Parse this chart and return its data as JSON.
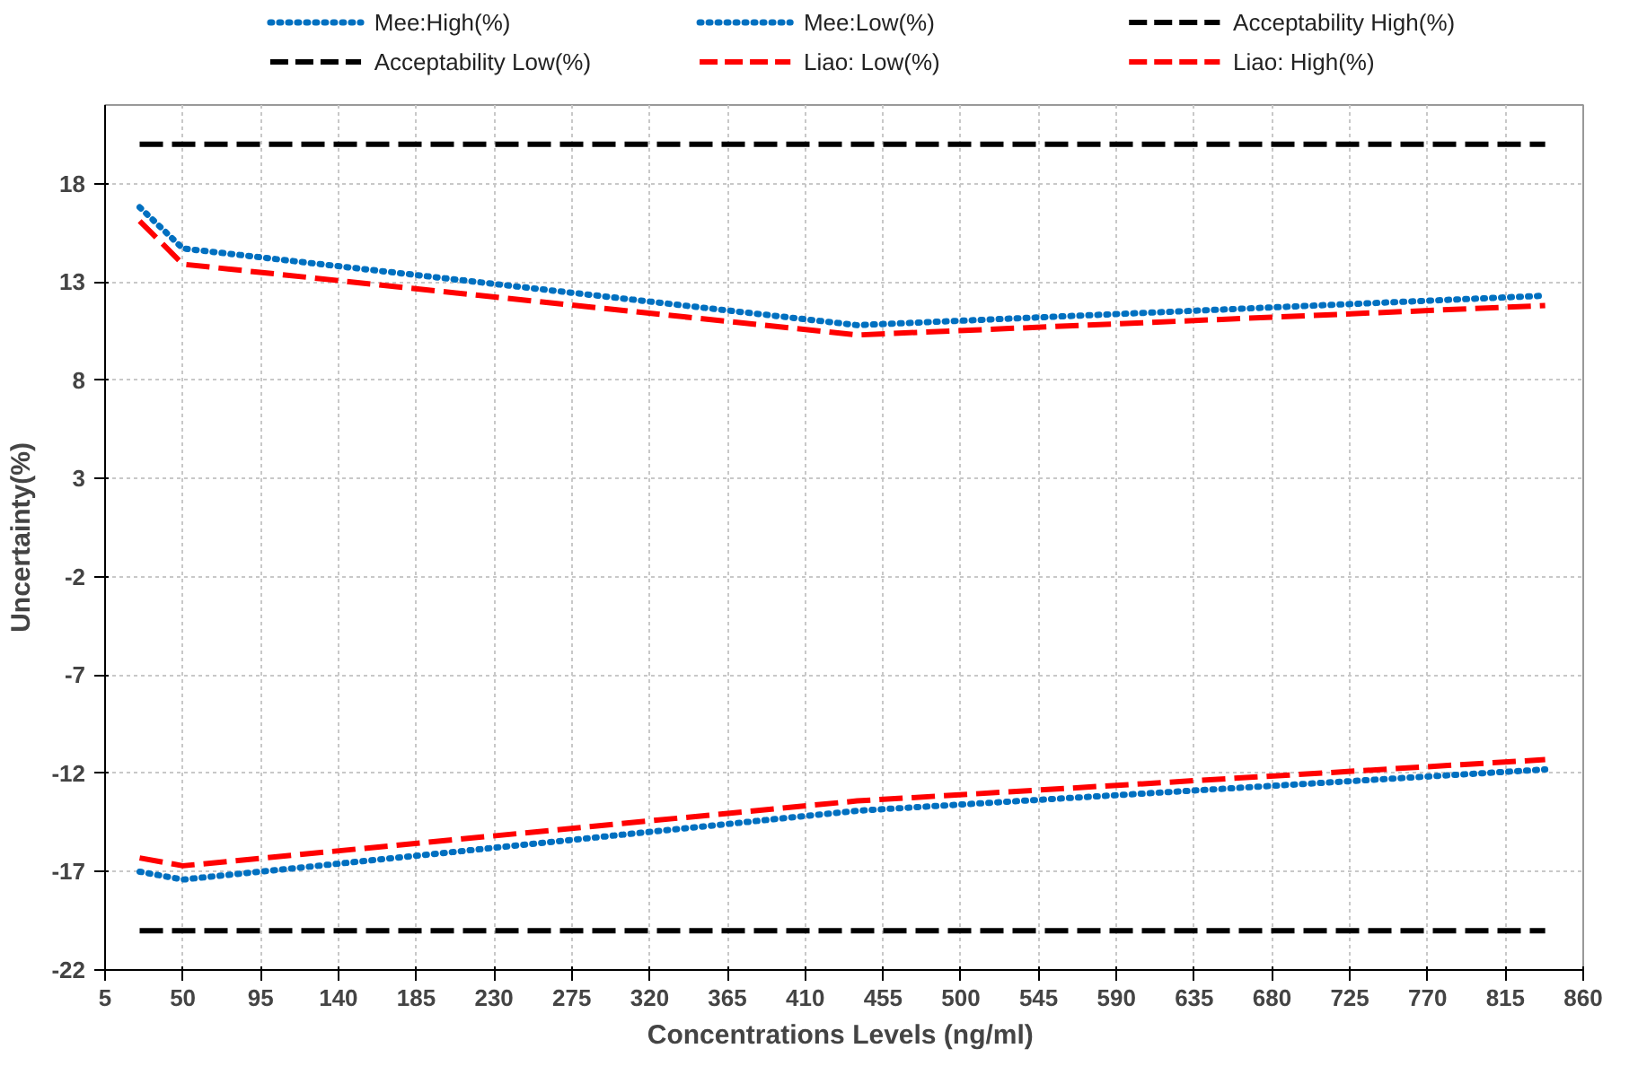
{
  "chart_data": {
    "type": "line",
    "xlabel": "Concentrations Levels  (ng/ml)",
    "ylabel": "Uncertainty(%)",
    "xlim": [
      5,
      860
    ],
    "xticks": [
      5,
      50,
      95,
      140,
      185,
      230,
      275,
      320,
      365,
      410,
      455,
      500,
      545,
      590,
      635,
      680,
      725,
      770,
      815,
      860
    ],
    "ylim": [
      -22,
      22
    ],
    "yticks": [
      -22,
      -17,
      -12,
      -7,
      -2,
      3,
      8,
      13,
      18
    ],
    "grid": true,
    "legend": "top",
    "marker": "none",
    "series": [
      {
        "name": "Mee:High(%)",
        "color": "#0070c0",
        "line_style": "dotted",
        "x": [
          25,
          50,
          440,
          838
        ],
        "values": [
          16.8,
          14.7,
          10.8,
          12.3
        ]
      },
      {
        "name": "Mee:Low(%)",
        "color": "#0070c0",
        "line_style": "dotted",
        "x": [
          25,
          50,
          440,
          838
        ],
        "values": [
          -17,
          -17.4,
          -13.9,
          -11.8
        ]
      },
      {
        "name": "Acceptability High(%)",
        "color": "#000000",
        "line_style": "dashed",
        "x": [
          25,
          838
        ],
        "values": [
          20,
          20
        ]
      },
      {
        "name": "Acceptability Low(%)",
        "color": "#000000",
        "line_style": "dashed",
        "x": [
          25,
          838
        ],
        "values": [
          -20,
          -20
        ]
      },
      {
        "name": "Liao: Low(%)",
        "color": "#ff0000",
        "line_style": "dashed",
        "x": [
          25,
          50,
          440,
          838
        ],
        "values": [
          -16.3,
          -16.7,
          -13.4,
          -11.3
        ]
      },
      {
        "name": "Liao: High(%)",
        "color": "#ff0000",
        "line_style": "dashed",
        "x": [
          25,
          50,
          440,
          838
        ],
        "values": [
          16.1,
          13.9,
          10.3,
          11.8
        ]
      }
    ]
  }
}
